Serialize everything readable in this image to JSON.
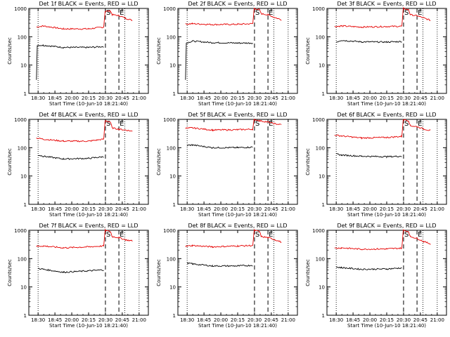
{
  "colors": {
    "black_series": "#000000",
    "red_series": "#e60000",
    "marker": "#000000"
  },
  "shared": {
    "ylabel": "Counts/sec",
    "xlabel": "Start Time (10-Jun-10 18:21:40)",
    "x_ticks": [
      "18:30",
      "18:45",
      "20:00",
      "20:15",
      "20:30",
      "20:45",
      "21:00"
    ],
    "y_ticks": [
      "1",
      "10",
      "100",
      "1000"
    ],
    "y_scale": "log",
    "ylim": [
      1,
      1000
    ],
    "x_range_tick_index": [
      -0.55,
      6.55
    ],
    "marker_labels": {
      "start": "S",
      "end": "E"
    }
  },
  "chart_data": [
    {
      "type": "line",
      "title": "Det 1f BLACK = Events, RED = LLD",
      "series": [
        {
          "color": "red",
          "points": [
            [
              -0.1,
              220
            ],
            [
              0.3,
              240
            ],
            [
              1.5,
              190
            ],
            [
              3.0,
              190
            ],
            [
              3.9,
              220
            ],
            [
              3.98,
              800
            ],
            [
              4.3,
              800
            ],
            [
              4.4,
              600
            ],
            [
              4.8,
              560
            ],
            [
              5.2,
              450
            ],
            [
              5.6,
              380
            ]
          ]
        },
        {
          "color": "black",
          "points": [
            [
              -0.1,
              3
            ],
            [
              -0.05,
              50
            ],
            [
              0.3,
              50
            ],
            [
              1.5,
              42
            ],
            [
              3.0,
              42
            ],
            [
              3.9,
              45
            ]
          ]
        }
      ],
      "dotted_lines": [
        0.0,
        5.15,
        6.0
      ],
      "dashed_lines": [
        4.0,
        4.8
      ],
      "start_marker_at": 4.0,
      "end_marker_at": 4.8
    },
    {
      "type": "line",
      "title": "Det 2f BLACK = Events, RED = LLD",
      "series": [
        {
          "color": "red",
          "points": [
            [
              -0.1,
              280
            ],
            [
              0.3,
              290
            ],
            [
              1.5,
              270
            ],
            [
              3.0,
              275
            ],
            [
              3.9,
              290
            ],
            [
              3.98,
              1000
            ],
            [
              4.3,
              900
            ],
            [
              4.4,
              650
            ],
            [
              4.8,
              600
            ],
            [
              5.2,
              480
            ],
            [
              5.6,
              400
            ]
          ]
        },
        {
          "color": "black",
          "points": [
            [
              -0.1,
              3
            ],
            [
              -0.05,
              60
            ],
            [
              0.3,
              70
            ],
            [
              1.5,
              62
            ],
            [
              3.0,
              60
            ],
            [
              3.9,
              60
            ]
          ]
        }
      ],
      "dotted_lines": [
        0.0,
        5.15,
        6.0
      ],
      "dashed_lines": [
        4.0,
        4.8
      ],
      "start_marker_at": 4.0,
      "end_marker_at": 4.8
    },
    {
      "type": "line",
      "title": "Det 3f BLACK = Events, RED = LLD",
      "series": [
        {
          "color": "red",
          "points": [
            [
              -0.1,
              230
            ],
            [
              0.3,
              240
            ],
            [
              1.5,
              220
            ],
            [
              3.0,
              230
            ],
            [
              3.9,
              235
            ],
            [
              3.98,
              1000
            ],
            [
              4.3,
              900
            ],
            [
              4.4,
              600
            ],
            [
              4.8,
              550
            ],
            [
              5.2,
              460
            ],
            [
              5.6,
              380
            ]
          ]
        },
        {
          "color": "black",
          "points": [
            [
              0.0,
              65
            ],
            [
              0.3,
              75
            ],
            [
              1.5,
              66
            ],
            [
              3.0,
              65
            ],
            [
              3.9,
              68
            ]
          ]
        }
      ],
      "dotted_lines": [
        0.0,
        5.15,
        6.0
      ],
      "dashed_lines": [
        4.0,
        4.8
      ],
      "start_marker_at": 4.0,
      "end_marker_at": 4.8
    },
    {
      "type": "line",
      "title": "Det 4f BLACK = Events, RED = LLD",
      "series": [
        {
          "color": "red",
          "points": [
            [
              -0.1,
              220
            ],
            [
              0.3,
              200
            ],
            [
              1.5,
              170
            ],
            [
              3.0,
              170
            ],
            [
              3.9,
              200
            ],
            [
              3.98,
              900
            ],
            [
              4.3,
              800
            ],
            [
              4.4,
              500
            ],
            [
              4.8,
              450
            ],
            [
              5.2,
              420
            ],
            [
              5.6,
              380
            ]
          ]
        },
        {
          "color": "black",
          "points": [
            [
              0.0,
              55
            ],
            [
              0.3,
              50
            ],
            [
              1.5,
              40
            ],
            [
              3.0,
              42
            ],
            [
              3.9,
              48
            ]
          ]
        }
      ],
      "dotted_lines": [
        0.0,
        5.15,
        6.0
      ],
      "dashed_lines": [
        4.0,
        4.8
      ],
      "start_marker_at": 4.0,
      "end_marker_at": 4.8
    },
    {
      "type": "line",
      "title": "Det 5f BLACK = Events, RED = LLD",
      "series": [
        {
          "color": "red",
          "points": [
            [
              -0.1,
              480
            ],
            [
              0.3,
              500
            ],
            [
              1.5,
              420
            ],
            [
              3.0,
              430
            ],
            [
              3.9,
              450
            ],
            [
              3.98,
              1000
            ],
            [
              4.3,
              900
            ],
            [
              4.8,
              800
            ],
            [
              5.2,
              700
            ],
            [
              5.6,
              650
            ]
          ]
        },
        {
          "color": "black",
          "points": [
            [
              0.0,
              120
            ],
            [
              0.3,
              125
            ],
            [
              1.5,
              100
            ],
            [
              3.0,
              100
            ],
            [
              3.9,
              105
            ]
          ]
        }
      ],
      "dotted_lines": [
        0.0,
        5.15,
        6.0
      ],
      "dashed_lines": [
        4.0,
        4.8
      ],
      "start_marker_at": 4.0,
      "end_marker_at": 4.8
    },
    {
      "type": "line",
      "title": "Det 6f BLACK = Events, RED = LLD",
      "series": [
        {
          "color": "red",
          "points": [
            [
              -0.1,
              280
            ],
            [
              0.3,
              260
            ],
            [
              1.5,
              220
            ],
            [
              3.0,
              230
            ],
            [
              3.9,
              250
            ],
            [
              3.98,
              1000
            ],
            [
              4.3,
              900
            ],
            [
              4.4,
              600
            ],
            [
              4.8,
              550
            ],
            [
              5.2,
              460
            ],
            [
              5.6,
              400
            ]
          ]
        },
        {
          "color": "black",
          "points": [
            [
              0.0,
              60
            ],
            [
              0.3,
              55
            ],
            [
              1.5,
              50
            ],
            [
              3.0,
              48
            ],
            [
              3.9,
              50
            ]
          ]
        }
      ],
      "dotted_lines": [
        0.0,
        5.15,
        6.0
      ],
      "dashed_lines": [
        4.0,
        4.8
      ],
      "start_marker_at": 4.0,
      "end_marker_at": 4.8
    },
    {
      "type": "line",
      "title": "Det 7f BLACK = Events, RED = LLD",
      "series": [
        {
          "color": "red",
          "points": [
            [
              -0.1,
              270
            ],
            [
              0.3,
              280
            ],
            [
              1.5,
              240
            ],
            [
              3.0,
              260
            ],
            [
              3.9,
              280
            ],
            [
              3.98,
              1000
            ],
            [
              4.3,
              900
            ],
            [
              4.4,
              600
            ],
            [
              4.8,
              550
            ],
            [
              5.2,
              460
            ],
            [
              5.6,
              420
            ]
          ]
        },
        {
          "color": "black",
          "points": [
            [
              0.0,
              45
            ],
            [
              0.3,
              42
            ],
            [
              1.5,
              33
            ],
            [
              3.0,
              37
            ],
            [
              3.9,
              40
            ]
          ]
        }
      ],
      "dotted_lines": [
        0.0,
        5.15,
        6.0
      ],
      "dashed_lines": [
        4.0,
        4.8
      ],
      "start_marker_at": 4.0,
      "end_marker_at": 4.8
    },
    {
      "type": "line",
      "title": "Det 8f BLACK = Events, RED = LLD",
      "series": [
        {
          "color": "red",
          "points": [
            [
              -0.1,
              270
            ],
            [
              0.3,
              290
            ],
            [
              1.5,
              260
            ],
            [
              3.0,
              280
            ],
            [
              3.9,
              290
            ],
            [
              3.98,
              1000
            ],
            [
              4.3,
              900
            ],
            [
              4.4,
              600
            ],
            [
              4.8,
              550
            ],
            [
              5.2,
              470
            ],
            [
              5.6,
              380
            ]
          ]
        },
        {
          "color": "black",
          "points": [
            [
              0.0,
              70
            ],
            [
              0.3,
              65
            ],
            [
              1.5,
              55
            ],
            [
              3.0,
              55
            ],
            [
              3.9,
              58
            ]
          ]
        }
      ],
      "dotted_lines": [
        0.0,
        5.15,
        6.0
      ],
      "dashed_lines": [
        4.0,
        4.8
      ],
      "start_marker_at": 4.0,
      "end_marker_at": 4.8
    },
    {
      "type": "line",
      "title": "Det 9f BLACK = Events, RED = LLD",
      "series": [
        {
          "color": "red",
          "points": [
            [
              -0.1,
              230
            ],
            [
              0.3,
              240
            ],
            [
              1.5,
              215
            ],
            [
              3.0,
              220
            ],
            [
              3.9,
              235
            ],
            [
              3.98,
              1000
            ],
            [
              4.3,
              900
            ],
            [
              4.4,
              600
            ],
            [
              4.8,
              520
            ],
            [
              5.2,
              400
            ],
            [
              5.6,
              330
            ]
          ]
        },
        {
          "color": "black",
          "points": [
            [
              0.0,
              50
            ],
            [
              0.3,
              48
            ],
            [
              1.5,
              42
            ],
            [
              3.0,
              43
            ],
            [
              3.9,
              47
            ]
          ]
        }
      ],
      "dotted_lines": [
        0.0,
        5.15,
        6.0
      ],
      "dashed_lines": [
        4.0,
        4.8
      ],
      "start_marker_at": 4.0,
      "end_marker_at": 4.8
    }
  ]
}
